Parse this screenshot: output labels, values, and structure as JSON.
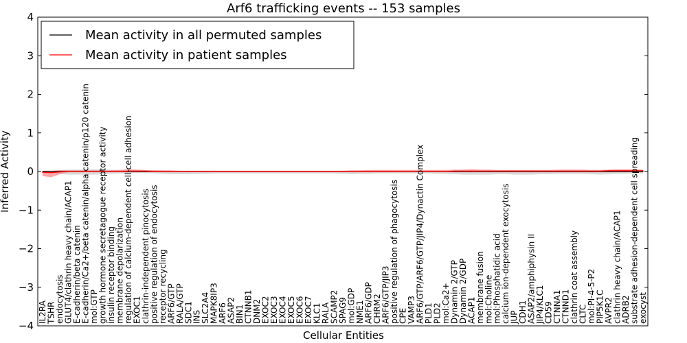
{
  "chart_data": {
    "type": "line",
    "title": "Arf6 trafficking events -- 153 samples",
    "xlabel": "Cellular Entities",
    "ylabel": "Inferred Activity",
    "ylim": [
      -4,
      4
    ],
    "yticks": [
      -4,
      -3,
      -2,
      -1,
      0,
      1,
      2,
      3,
      4
    ],
    "ytick_labels": [
      "−4",
      "−3",
      "−2",
      "−1",
      "0",
      "1",
      "2",
      "3",
      "4"
    ],
    "legend_position": "top-left",
    "categories": [
      "IL2RA",
      "TSHR",
      "endocytosis",
      "GLUT4/clathrin heavy chain/ACAP1",
      "E-cadherin/beta catenin",
      "E-cadherin/Ca2+/beta catenin/alpha catenin/p120 catenin",
      "mol:GTP",
      "growth hormone secretagogue receptor activity",
      "insulin receptor binding",
      "membrane depolarization",
      "regulation of calcium-dependent cell-cell adhesion",
      "EXOC1",
      "clathrin-independent pinocytosis",
      "positive regulation of endocytosis",
      "receptor recycling",
      "ARF6/GTP",
      "RALA/GTP",
      "SDC1",
      "INS",
      "SLC2A4",
      "MAPK8IP3",
      "ARF6",
      "ASAP2",
      "BIN1",
      "CTNNB1",
      "DNM2",
      "EXOC2",
      "EXOC3",
      "EXOC4",
      "EXOC5",
      "EXOC6",
      "EXOC7",
      "KLC1",
      "RALA",
      "SCAMP2",
      "SPAG9",
      "mol:GDP",
      "NME1",
      "ARF6/GDP",
      "CHRM2",
      "ARF6/GTP/JIP3",
      "positive regulation of phagocytosis",
      "CPE",
      "VAMP3",
      "ARF6/GTP/ARF6/GTP/JIP4/Dynactin Complex",
      "PLD1",
      "PLD2",
      "mol:Ca2+",
      "Dynamin 2/GTP",
      "Dynamin 2/GDP",
      "ACAP1",
      "membrane fusion",
      "mol:Choline",
      "mol:Phosphatidic acid",
      "calcium ion-dependent exocytosis",
      "JUP",
      "CDH1",
      "ASAP2/amphiphysin II",
      "JIP4/KLC1",
      "CD59",
      "CTNNA1",
      "CTNND1",
      "clathrin coat assembly",
      "CLTC",
      "mol:PI-4-5-P2",
      "PIP5K1C",
      "AVPR2",
      "clathrin heavy chain/ACAP1",
      "ADRB2",
      "substrate adhesion-dependent cell spreading",
      "exocyst"
    ],
    "series": [
      {
        "name": "Mean activity in all permuted samples",
        "color": "#000000",
        "values": [
          0.0,
          0.0,
          0.0,
          0.0,
          0.0,
          0.0,
          0.0,
          0.0,
          0.0,
          0.0,
          0.0,
          0.0,
          0.0,
          0.0,
          0.0,
          0.0,
          0.0,
          0.0,
          0.0,
          0.0,
          0.0,
          0.0,
          0.0,
          0.0,
          0.0,
          0.0,
          0.0,
          0.0,
          0.0,
          0.0,
          0.0,
          0.0,
          0.0,
          0.0,
          0.0,
          0.0,
          0.0,
          0.0,
          0.0,
          0.0,
          0.0,
          0.0,
          0.0,
          0.0,
          0.0,
          0.0,
          0.0,
          0.0,
          0.0,
          0.0,
          0.0,
          0.0,
          0.0,
          0.0,
          0.0,
          0.0,
          0.0,
          0.0,
          0.0,
          0.0,
          0.0,
          0.0,
          0.0,
          0.0,
          0.0,
          0.0,
          0.0,
          0.0,
          0.0,
          0.0,
          0.0
        ],
        "band_color": "#b8b8b8",
        "band_upper": [
          0.02,
          0.02,
          0.04,
          0.05,
          0.05,
          0.05,
          0.06,
          0.05,
          0.05,
          0.04,
          0.04,
          0.03,
          0.03,
          0.03,
          0.02,
          0.02,
          0.02,
          0.02,
          0.02,
          0.02,
          0.02,
          0.02,
          0.02,
          0.02,
          0.02,
          0.02,
          0.02,
          0.02,
          0.02,
          0.02,
          0.02,
          0.02,
          0.02,
          0.02,
          0.02,
          0.02,
          0.02,
          0.02,
          0.02,
          0.02,
          0.02,
          0.02,
          0.02,
          0.02,
          0.02,
          0.02,
          0.02,
          0.02,
          0.02,
          0.02,
          0.02,
          0.02,
          0.02,
          0.02,
          0.02,
          0.02,
          0.02,
          0.02,
          0.02,
          0.02,
          0.02,
          0.02,
          0.02,
          0.02,
          0.02,
          0.02,
          0.02,
          0.02,
          0.02,
          0.02,
          0.02
        ],
        "band_lower": [
          -0.05,
          -0.06,
          -0.06,
          -0.08,
          -0.08,
          -0.08,
          -0.08,
          -0.07,
          -0.06,
          -0.05,
          -0.05,
          -0.04,
          -0.04,
          -0.05,
          -0.06,
          -0.07,
          -0.07,
          -0.07,
          -0.06,
          -0.06,
          -0.05,
          -0.05,
          -0.05,
          -0.05,
          -0.05,
          -0.05,
          -0.05,
          -0.05,
          -0.05,
          -0.05,
          -0.05,
          -0.05,
          -0.05,
          -0.05,
          -0.05,
          -0.06,
          -0.07,
          -0.06,
          -0.06,
          -0.05,
          -0.05,
          -0.05,
          -0.05,
          -0.05,
          -0.05,
          -0.05,
          -0.06,
          -0.06,
          -0.07,
          -0.08,
          -0.08,
          -0.08,
          -0.08,
          -0.07,
          -0.07,
          -0.08,
          -0.08,
          -0.08,
          -0.07,
          -0.07,
          -0.06,
          -0.06,
          -0.06,
          -0.06,
          -0.07,
          -0.08,
          -0.07,
          -0.06,
          -0.06,
          -0.05,
          -0.05
        ]
      },
      {
        "name": "Mean activity in patient samples",
        "color": "#ff0000",
        "values": [
          -0.02,
          -0.03,
          -0.01,
          0.0,
          0.0,
          0.0,
          0.0,
          0.0,
          0.0,
          0.0,
          0.01,
          0.01,
          0.01,
          0.0,
          0.0,
          0.0,
          0.0,
          0.0,
          0.0,
          0.0,
          0.0,
          0.0,
          0.0,
          0.0,
          0.0,
          0.0,
          0.0,
          0.0,
          0.0,
          0.0,
          0.0,
          0.0,
          0.0,
          0.0,
          0.0,
          0.0,
          0.0,
          0.0,
          0.0,
          0.0,
          0.0,
          0.0,
          0.0,
          0.0,
          0.0,
          0.0,
          0.0,
          0.0,
          0.01,
          0.01,
          0.01,
          0.01,
          0.01,
          0.01,
          0.01,
          0.01,
          0.01,
          0.01,
          0.01,
          0.01,
          0.01,
          0.01,
          0.01,
          0.01,
          0.01,
          0.01,
          0.02,
          0.02,
          0.02,
          0.02,
          0.02
        ],
        "band_color": "#ff8080",
        "band_upper": [
          0.02,
          0.02,
          0.03,
          0.03,
          0.03,
          0.03,
          0.03,
          0.03,
          0.03,
          0.04,
          0.06,
          0.05,
          0.04,
          0.03,
          0.03,
          0.03,
          0.02,
          0.02,
          0.02,
          0.02,
          0.02,
          0.02,
          0.02,
          0.02,
          0.02,
          0.02,
          0.02,
          0.02,
          0.02,
          0.02,
          0.02,
          0.02,
          0.02,
          0.02,
          0.02,
          0.02,
          0.03,
          0.03,
          0.04,
          0.04,
          0.04,
          0.04,
          0.04,
          0.04,
          0.04,
          0.04,
          0.04,
          0.04,
          0.05,
          0.05,
          0.06,
          0.05,
          0.05,
          0.04,
          0.04,
          0.04,
          0.04,
          0.04,
          0.04,
          0.04,
          0.05,
          0.05,
          0.05,
          0.05,
          0.04,
          0.04,
          0.05,
          0.06,
          0.06,
          0.06,
          0.05
        ],
        "band_lower": [
          -0.12,
          -0.15,
          -0.07,
          -0.02,
          -0.02,
          -0.02,
          -0.02,
          -0.02,
          -0.02,
          -0.02,
          -0.02,
          -0.02,
          -0.02,
          -0.02,
          -0.02,
          -0.02,
          -0.02,
          -0.02,
          -0.02,
          -0.02,
          -0.02,
          -0.02,
          -0.02,
          -0.02,
          -0.02,
          -0.02,
          -0.02,
          -0.02,
          -0.02,
          -0.02,
          -0.02,
          -0.02,
          -0.02,
          -0.02,
          -0.02,
          -0.02,
          -0.02,
          -0.02,
          -0.02,
          -0.02,
          -0.02,
          -0.02,
          -0.02,
          -0.02,
          -0.02,
          -0.02,
          -0.02,
          -0.02,
          -0.02,
          -0.02,
          -0.02,
          -0.02,
          -0.02,
          -0.02,
          -0.02,
          -0.02,
          -0.02,
          -0.02,
          -0.02,
          -0.02,
          -0.02,
          -0.02,
          -0.02,
          -0.02,
          -0.02,
          -0.02,
          -0.02,
          -0.02,
          -0.02,
          -0.02,
          -0.02
        ]
      }
    ]
  }
}
